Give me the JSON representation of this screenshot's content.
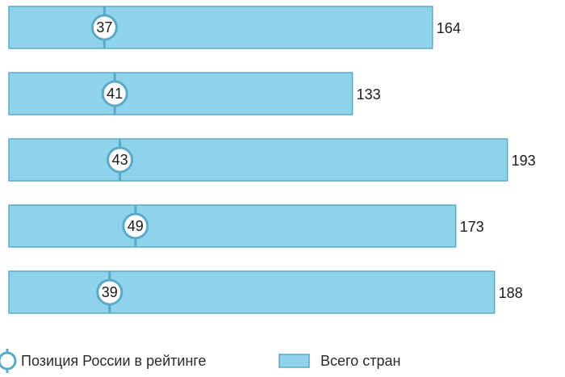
{
  "chart_data": {
    "type": "bar",
    "orientation": "horizontal",
    "xlim": [
      0,
      200
    ],
    "grid": false,
    "legend_position": "bottom",
    "series": [
      {
        "name": "Всего стран",
        "values": [
          164,
          133,
          193,
          173,
          188
        ],
        "color": "#8fd3ea",
        "edge_color": "#5ba9c9"
      },
      {
        "name": "Позиция России в рейтинге",
        "values": [
          37,
          41,
          43,
          49,
          39
        ],
        "marker_edge_color": "#5ba9c9",
        "marker_fill": "#ffffff"
      }
    ]
  },
  "legend": {
    "position_label": "Позиция России в рейтинге",
    "total_label": "Всего стран"
  }
}
